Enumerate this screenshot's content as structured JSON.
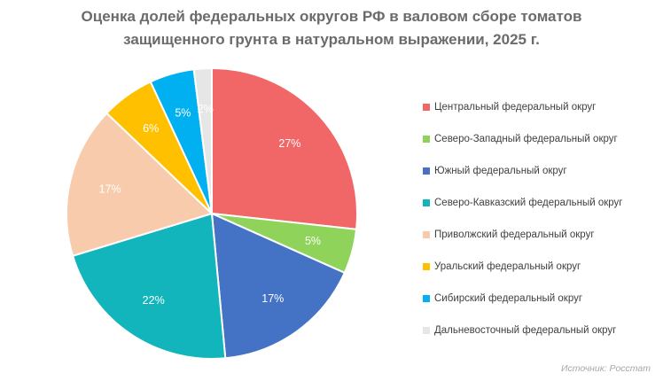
{
  "title_lines": [
    "Оценка долей федеральных округов РФ в валовом сборе томатов",
    "защищенного грунта в натуральном выражении, 2025 г."
  ],
  "source": "Источник: Росстат",
  "chart_data": {
    "type": "pie",
    "title": "Оценка долей федеральных округов РФ в валовом сборе томатов защищенного грунта в натуральном выражении, 2025 г.",
    "legend_position": "right",
    "start_angle_deg": 0,
    "direction": "clockwise",
    "slices": [
      {
        "name": "Центральный федеральный округ",
        "value": 27,
        "label": "27%",
        "color": "#F16667"
      },
      {
        "name": "Северо-Западный федеральный округ",
        "value": 5,
        "label": "5%",
        "color": "#8FD35A"
      },
      {
        "name": "Южный федеральный округ",
        "value": 17,
        "label": "17%",
        "color": "#4472C4"
      },
      {
        "name": "Северо-Кавказский федеральный округ",
        "value": 22,
        "label": "22%",
        "color": "#11B5BB"
      },
      {
        "name": "Приволжский федеральный округ",
        "value": 17,
        "label": "17%",
        "color": "#F8CBAD"
      },
      {
        "name": "Уральский федеральный округ",
        "value": 6,
        "label": "6%",
        "color": "#FFC000"
      },
      {
        "name": "Сибирский федеральный округ",
        "value": 5,
        "label": "5%",
        "color": "#00B0F0"
      },
      {
        "name": "Дальневосточный федеральный округ",
        "value": 2,
        "label": "2%",
        "color": "#E7E6E6"
      }
    ]
  }
}
